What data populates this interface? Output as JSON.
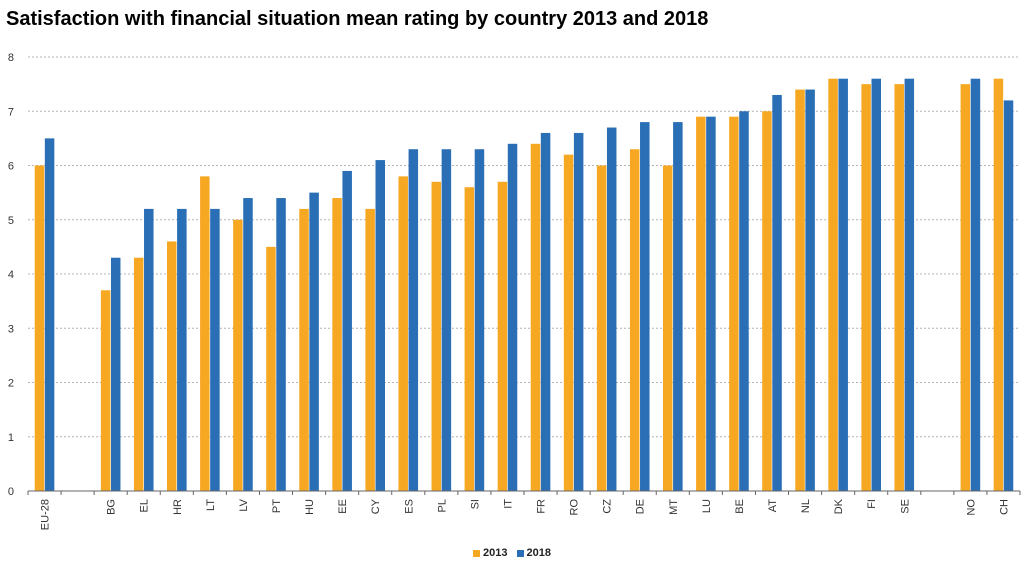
{
  "chart_data": {
    "type": "bar",
    "title": "Satisfaction with financial situation mean rating by country 2013 and 2018",
    "xlabel": "",
    "ylabel": "",
    "ylim": [
      0,
      8
    ],
    "yticks": [
      0,
      1,
      2,
      3,
      4,
      5,
      6,
      7,
      8
    ],
    "grid": true,
    "legend_position": "bottom-center",
    "categories": [
      "EU-28",
      "",
      "BG",
      "EL",
      "HR",
      "LT",
      "LV",
      "PT",
      "HU",
      "EE",
      "CY",
      "ES",
      "PL",
      "SI",
      "IT",
      "FR",
      "RO",
      "CZ",
      "DE",
      "MT",
      "LU",
      "BE",
      "AT",
      "NL",
      "DK",
      "FI",
      "SE",
      "",
      "NO",
      "CH"
    ],
    "series": [
      {
        "name": "2013",
        "color": "#f7a823",
        "values": [
          6.0,
          null,
          3.7,
          4.3,
          4.6,
          5.8,
          5.0,
          4.5,
          5.2,
          5.4,
          5.2,
          5.8,
          5.7,
          5.6,
          5.7,
          6.4,
          6.2,
          6.0,
          6.3,
          6.0,
          6.9,
          6.9,
          7.0,
          7.4,
          7.6,
          7.5,
          7.5,
          null,
          7.5,
          7.6
        ]
      },
      {
        "name": "2018",
        "color": "#2a6fb5",
        "values": [
          6.5,
          null,
          4.3,
          5.2,
          5.2,
          5.2,
          5.4,
          5.4,
          5.5,
          5.9,
          6.1,
          6.3,
          6.3,
          6.3,
          6.4,
          6.6,
          6.6,
          6.7,
          6.8,
          6.8,
          6.9,
          7.0,
          7.3,
          7.4,
          7.6,
          7.6,
          7.6,
          null,
          7.6,
          7.2
        ]
      }
    ]
  }
}
